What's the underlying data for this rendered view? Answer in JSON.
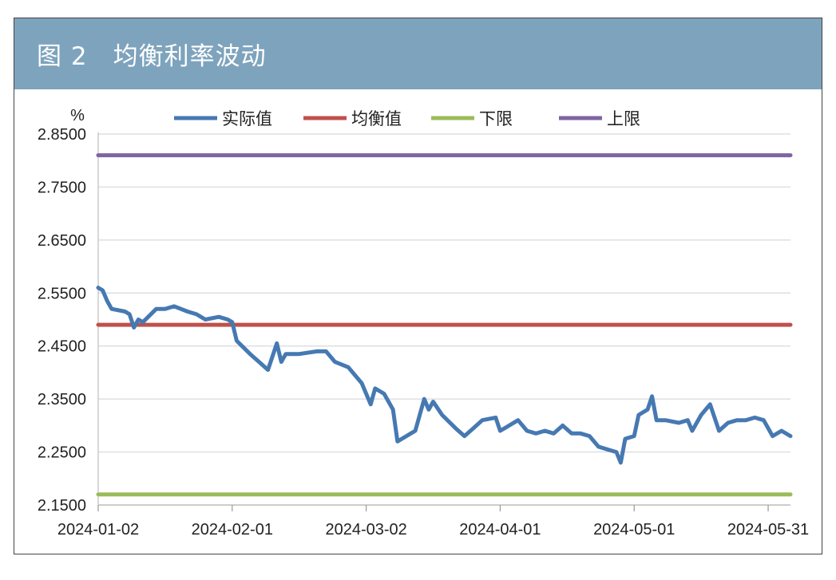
{
  "header": {
    "title": "图 2　均衡利率波动"
  },
  "colors": {
    "header_bg": "#7ea3bd",
    "actual": "#4679b2",
    "equilibrium": "#c0504d",
    "lower": "#9bbb59",
    "upper": "#8064a2",
    "grid": "#d9d9d9"
  },
  "chart_data": {
    "type": "line",
    "title": "图 2　均衡利率波动",
    "ylabel": "%",
    "ylim": [
      2.15,
      2.85
    ],
    "yticks": [
      "2.8500",
      "2.7500",
      "2.6500",
      "2.5500",
      "2.4500",
      "2.3500",
      "2.2500",
      "2.1500"
    ],
    "xticks": [
      "2024-01-02",
      "2024-02-01",
      "2024-03-02",
      "2024-04-01",
      "2024-05-01",
      "2024-05-31"
    ],
    "xlim": [
      "2024-01-02",
      "2024-06-05"
    ],
    "legend_position": "top",
    "series": [
      {
        "name": "实际值",
        "key": "actual",
        "points": [
          [
            "2024-01-02",
            2.56
          ],
          [
            "2024-01-03",
            2.555
          ],
          [
            "2024-01-04",
            2.535
          ],
          [
            "2024-01-05",
            2.52
          ],
          [
            "2024-01-08",
            2.515
          ],
          [
            "2024-01-09",
            2.51
          ],
          [
            "2024-01-10",
            2.485
          ],
          [
            "2024-01-11",
            2.5
          ],
          [
            "2024-01-12",
            2.495
          ],
          [
            "2024-01-15",
            2.52
          ],
          [
            "2024-01-17",
            2.52
          ],
          [
            "2024-01-19",
            2.525
          ],
          [
            "2024-01-22",
            2.515
          ],
          [
            "2024-01-24",
            2.51
          ],
          [
            "2024-01-26",
            2.5
          ],
          [
            "2024-01-29",
            2.505
          ],
          [
            "2024-01-31",
            2.5
          ],
          [
            "2024-02-01",
            2.495
          ],
          [
            "2024-02-02",
            2.46
          ],
          [
            "2024-02-05",
            2.435
          ],
          [
            "2024-02-07",
            2.42
          ],
          [
            "2024-02-09",
            2.405
          ],
          [
            "2024-02-11",
            2.455
          ],
          [
            "2024-02-12",
            2.42
          ],
          [
            "2024-02-13",
            2.435
          ],
          [
            "2024-02-16",
            2.435
          ],
          [
            "2024-02-20",
            2.44
          ],
          [
            "2024-02-22",
            2.44
          ],
          [
            "2024-02-24",
            2.42
          ],
          [
            "2024-02-27",
            2.41
          ],
          [
            "2024-02-29",
            2.39
          ],
          [
            "2024-03-01",
            2.38
          ],
          [
            "2024-03-03",
            2.34
          ],
          [
            "2024-03-04",
            2.37
          ],
          [
            "2024-03-06",
            2.36
          ],
          [
            "2024-03-08",
            2.33
          ],
          [
            "2024-03-09",
            2.27
          ],
          [
            "2024-03-11",
            2.28
          ],
          [
            "2024-03-13",
            2.29
          ],
          [
            "2024-03-15",
            2.35
          ],
          [
            "2024-03-16",
            2.33
          ],
          [
            "2024-03-17",
            2.345
          ],
          [
            "2024-03-19",
            2.32
          ],
          [
            "2024-03-22",
            2.295
          ],
          [
            "2024-03-24",
            2.28
          ],
          [
            "2024-03-26",
            2.295
          ],
          [
            "2024-03-28",
            2.31
          ],
          [
            "2024-03-31",
            2.315
          ],
          [
            "2024-04-01",
            2.29
          ],
          [
            "2024-04-03",
            2.3
          ],
          [
            "2024-04-05",
            2.31
          ],
          [
            "2024-04-07",
            2.29
          ],
          [
            "2024-04-09",
            2.285
          ],
          [
            "2024-04-11",
            2.29
          ],
          [
            "2024-04-13",
            2.285
          ],
          [
            "2024-04-15",
            2.3
          ],
          [
            "2024-04-17",
            2.285
          ],
          [
            "2024-04-19",
            2.285
          ],
          [
            "2024-04-21",
            2.28
          ],
          [
            "2024-04-23",
            2.26
          ],
          [
            "2024-04-25",
            2.255
          ],
          [
            "2024-04-27",
            2.25
          ],
          [
            "2024-04-28",
            2.23
          ],
          [
            "2024-04-29",
            2.275
          ],
          [
            "2024-05-01",
            2.28
          ],
          [
            "2024-05-02",
            2.32
          ],
          [
            "2024-05-04",
            2.33
          ],
          [
            "2024-05-05",
            2.355
          ],
          [
            "2024-05-06",
            2.31
          ],
          [
            "2024-05-08",
            2.31
          ],
          [
            "2024-05-11",
            2.305
          ],
          [
            "2024-05-13",
            2.31
          ],
          [
            "2024-05-14",
            2.29
          ],
          [
            "2024-05-16",
            2.32
          ],
          [
            "2024-05-18",
            2.34
          ],
          [
            "2024-05-20",
            2.29
          ],
          [
            "2024-05-22",
            2.305
          ],
          [
            "2024-05-24",
            2.31
          ],
          [
            "2024-05-26",
            2.31
          ],
          [
            "2024-05-28",
            2.315
          ],
          [
            "2024-05-30",
            2.31
          ],
          [
            "2024-06-01",
            2.28
          ],
          [
            "2024-06-03",
            2.29
          ],
          [
            "2024-06-05",
            2.28
          ]
        ]
      },
      {
        "name": "均衡值",
        "key": "equilibrium",
        "constant": 2.49
      },
      {
        "name": "下限",
        "key": "lower",
        "constant": 2.17
      },
      {
        "name": "上限",
        "key": "upper",
        "constant": 2.81
      }
    ]
  }
}
